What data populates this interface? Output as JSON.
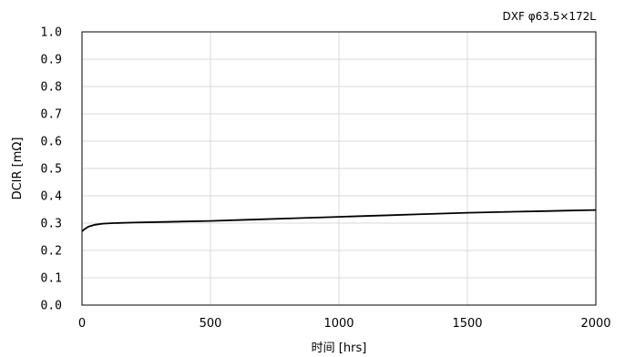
{
  "chart_data": {
    "type": "line",
    "annotation": "DXF φ63.5×172L",
    "xlabel": "时间 [hrs]",
    "ylabel": "DCIR [mΩ]",
    "xlim": [
      0,
      2000
    ],
    "ylim": [
      0.0,
      1.0
    ],
    "x_ticks": [
      0,
      500,
      1000,
      1500,
      2000
    ],
    "y_ticks": [
      "0.0",
      "0.1",
      "0.2",
      "0.3",
      "0.4",
      "0.5",
      "0.6",
      "0.7",
      "0.8",
      "0.9",
      "1.0"
    ],
    "grid": true,
    "series": [
      {
        "x": [
          0,
          10,
          25,
          50,
          80,
          120,
          200,
          300,
          400,
          500,
          600,
          700,
          800,
          900,
          1000,
          1100,
          1200,
          1300,
          1400,
          1500,
          1600,
          1700,
          1800,
          1900,
          2000
        ],
        "y": [
          0.27,
          0.278,
          0.287,
          0.294,
          0.298,
          0.3,
          0.302,
          0.304,
          0.306,
          0.308,
          0.311,
          0.314,
          0.317,
          0.32,
          0.323,
          0.326,
          0.329,
          0.332,
          0.335,
          0.338,
          0.34,
          0.342,
          0.344,
          0.346,
          0.348
        ],
        "color": "#000000"
      }
    ]
  }
}
